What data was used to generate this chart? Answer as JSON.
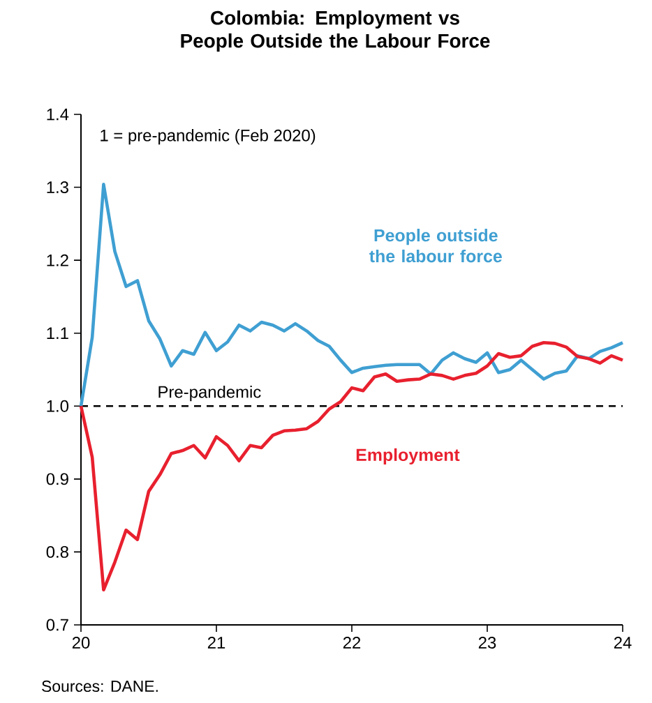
{
  "chart_data": {
    "type": "line",
    "title": "Colombia: Employment vs People Outside the Labour Force",
    "x": [
      20,
      20.083,
      20.167,
      20.25,
      20.333,
      20.417,
      20.5,
      20.583,
      20.667,
      20.75,
      20.833,
      20.917,
      21,
      21.083,
      21.167,
      21.25,
      21.333,
      21.417,
      21.5,
      21.583,
      21.667,
      21.75,
      21.833,
      21.917,
      22,
      22.083,
      22.167,
      22.25,
      22.333,
      22.417,
      22.5,
      22.583,
      22.667,
      22.75,
      22.833,
      22.917,
      23,
      23.083,
      23.167,
      23.25,
      23.333,
      23.417,
      23.5,
      23.583,
      23.667,
      23.75,
      23.833,
      23.917,
      24
    ],
    "series": [
      {
        "name": "People outside the labour force",
        "color": "#3f9fd2",
        "values": [
          1.0,
          1.094,
          1.304,
          1.212,
          1.164,
          1.172,
          1.117,
          1.092,
          1.055,
          1.076,
          1.071,
          1.101,
          1.076,
          1.088,
          1.111,
          1.103,
          1.115,
          1.111,
          1.103,
          1.113,
          1.103,
          1.09,
          1.082,
          1.063,
          1.046,
          1.052,
          1.054,
          1.056,
          1.057,
          1.057,
          1.057,
          1.044,
          1.063,
          1.073,
          1.065,
          1.06,
          1.073,
          1.046,
          1.05,
          1.063,
          1.05,
          1.037,
          1.045,
          1.048,
          1.069,
          1.065,
          1.075,
          1.08,
          1.087
        ]
      },
      {
        "name": "Employment",
        "color": "#e8202e",
        "values": [
          1.0,
          0.93,
          0.748,
          0.786,
          0.83,
          0.817,
          0.883,
          0.906,
          0.935,
          0.939,
          0.946,
          0.929,
          0.958,
          0.946,
          0.925,
          0.946,
          0.943,
          0.96,
          0.966,
          0.967,
          0.969,
          0.979,
          0.996,
          1.006,
          1.025,
          1.021,
          1.04,
          1.044,
          1.034,
          1.036,
          1.037,
          1.044,
          1.042,
          1.037,
          1.042,
          1.045,
          1.055,
          1.072,
          1.067,
          1.069,
          1.082,
          1.087,
          1.086,
          1.081,
          1.068,
          1.065,
          1.059,
          1.069,
          1.063
        ]
      }
    ],
    "xlim": [
      20,
      24
    ],
    "xticks": [
      20,
      21,
      22,
      23,
      24
    ],
    "ylim": [
      0.7,
      1.4
    ],
    "yticks": [
      0.7,
      0.8,
      0.9,
      {
        "value": 1,
        "label": "1.0"
      },
      1.1,
      1.2,
      1.3,
      1.4
    ],
    "ref_lines": [
      {
        "axis": "y",
        "value": 1,
        "label": "Pre-pandemic",
        "color": "#000000",
        "line_style": "dashed"
      }
    ],
    "annotations": [
      "1 = pre-pandemic (Feb 2020)",
      "Sources: DANE."
    ],
    "grid": false,
    "marker": "none",
    "line_style": "solid"
  }
}
